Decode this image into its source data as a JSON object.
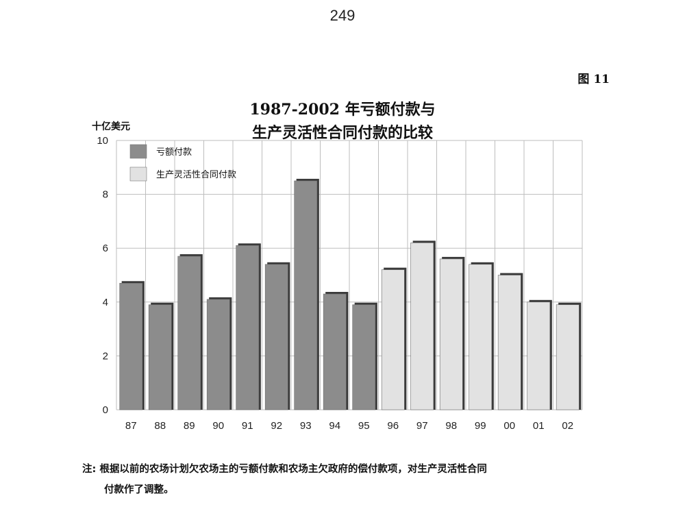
{
  "page_number": "249",
  "figure_label": "图 11",
  "note": {
    "prefix": "注:",
    "line1": "根据以前的农场计划欠农场主的亏额付款和农场主欠政府的偿付款项，对生产灵活性合同",
    "line2": "付款作了调整。"
  },
  "colors": {
    "loan_deficiency": "#8c8c8c",
    "pfc": "#e2e2e2",
    "bar_shadow": "#3a3a3a",
    "grid": "#bdbdbd"
  },
  "chart_data": {
    "type": "bar",
    "title": [
      "1987-2002 年亏额付款与",
      "生产灵活性合同付款的比较"
    ],
    "ylabel": "十亿美元",
    "xlabel": "",
    "ylim": [
      0,
      10
    ],
    "yticks": [
      0,
      2,
      4,
      6,
      8,
      10
    ],
    "grid": true,
    "legend_position": "top-left",
    "categories": [
      "87",
      "88",
      "89",
      "90",
      "91",
      "92",
      "93",
      "94",
      "95",
      "96",
      "97",
      "98",
      "99",
      "00",
      "01",
      "02"
    ],
    "series": [
      {
        "name": "亏额付款",
        "color": "#8c8c8c",
        "values": [
          4.7,
          3.9,
          5.7,
          4.1,
          6.1,
          5.4,
          8.5,
          4.3,
          3.9,
          null,
          null,
          null,
          null,
          null,
          null,
          null
        ]
      },
      {
        "name": "生产灵活性合同付款",
        "color": "#e2e2e2",
        "values": [
          null,
          null,
          null,
          null,
          null,
          null,
          null,
          null,
          null,
          5.2,
          6.2,
          5.6,
          5.4,
          5.0,
          4.0,
          3.9
        ]
      }
    ]
  }
}
